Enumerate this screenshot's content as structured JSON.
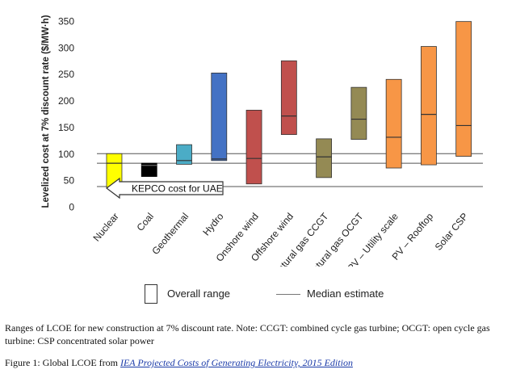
{
  "chart_data": {
    "type": "floating-bar",
    "ylabel": "Levelized cost at 7% discount rate ($/MW·h)",
    "ylim": [
      0,
      350
    ],
    "yticks": [
      "0",
      "50",
      "100",
      "150",
      "200",
      "250",
      "300",
      "350"
    ],
    "categories": [
      "Nuclear",
      "Coal",
      "Geothermal",
      "Hydro",
      "Onshore wind",
      "Offshore wind",
      "Natural gas CCGT",
      "Natural gas OCGT",
      "PV – Utility scale",
      "PV – Rooftop",
      "Solar CSP"
    ],
    "series": [
      {
        "name": "Nuclear",
        "min": 37,
        "max": 100,
        "median": 82,
        "color": "#ffff00"
      },
      {
        "name": "Coal",
        "min": 57,
        "max": 82,
        "median": 78,
        "color": "#000000"
      },
      {
        "name": "Geothermal",
        "min": 80,
        "max": 117,
        "median": 87,
        "color": "#4bacc6"
      },
      {
        "name": "Hydro",
        "min": 87,
        "max": 252,
        "median": 90,
        "color": "#4472c4"
      },
      {
        "name": "Onshore wind",
        "min": 43,
        "max": 182,
        "median": 91,
        "color": "#c0504d"
      },
      {
        "name": "Offshore wind",
        "min": 136,
        "max": 275,
        "median": 171,
        "color": "#c0504d"
      },
      {
        "name": "Natural gas CCGT",
        "min": 55,
        "max": 128,
        "median": 94,
        "color": "#948a54"
      },
      {
        "name": "Natural gas OCGT",
        "min": 127,
        "max": 225,
        "median": 165,
        "color": "#948a54"
      },
      {
        "name": "PV – Utility scale",
        "min": 73,
        "max": 240,
        "median": 131,
        "color": "#f79646"
      },
      {
        "name": "PV – Rooftop",
        "min": 79,
        "max": 302,
        "median": 174,
        "color": "#f79646"
      },
      {
        "name": "Solar CSP",
        "min": 95,
        "max": 349,
        "median": 153,
        "color": "#f79646"
      }
    ],
    "reference_lines": [
      100,
      82,
      38
    ],
    "annotation": "KEPCO cost for UAE"
  },
  "legend": {
    "range_label": "Overall range",
    "median_label": "Median estimate"
  },
  "caption": {
    "note": "Ranges of LCOE for new construction at 7% discount rate. Note: CCGT: combined cycle gas turbine; OCGT: open cycle gas turbine: CSP concentrated solar power",
    "figure_prefix": "Figure 1: Global LCOE from ",
    "figure_link": "IEA Projected Costs of Generating Electricity, 2015 Edition"
  }
}
